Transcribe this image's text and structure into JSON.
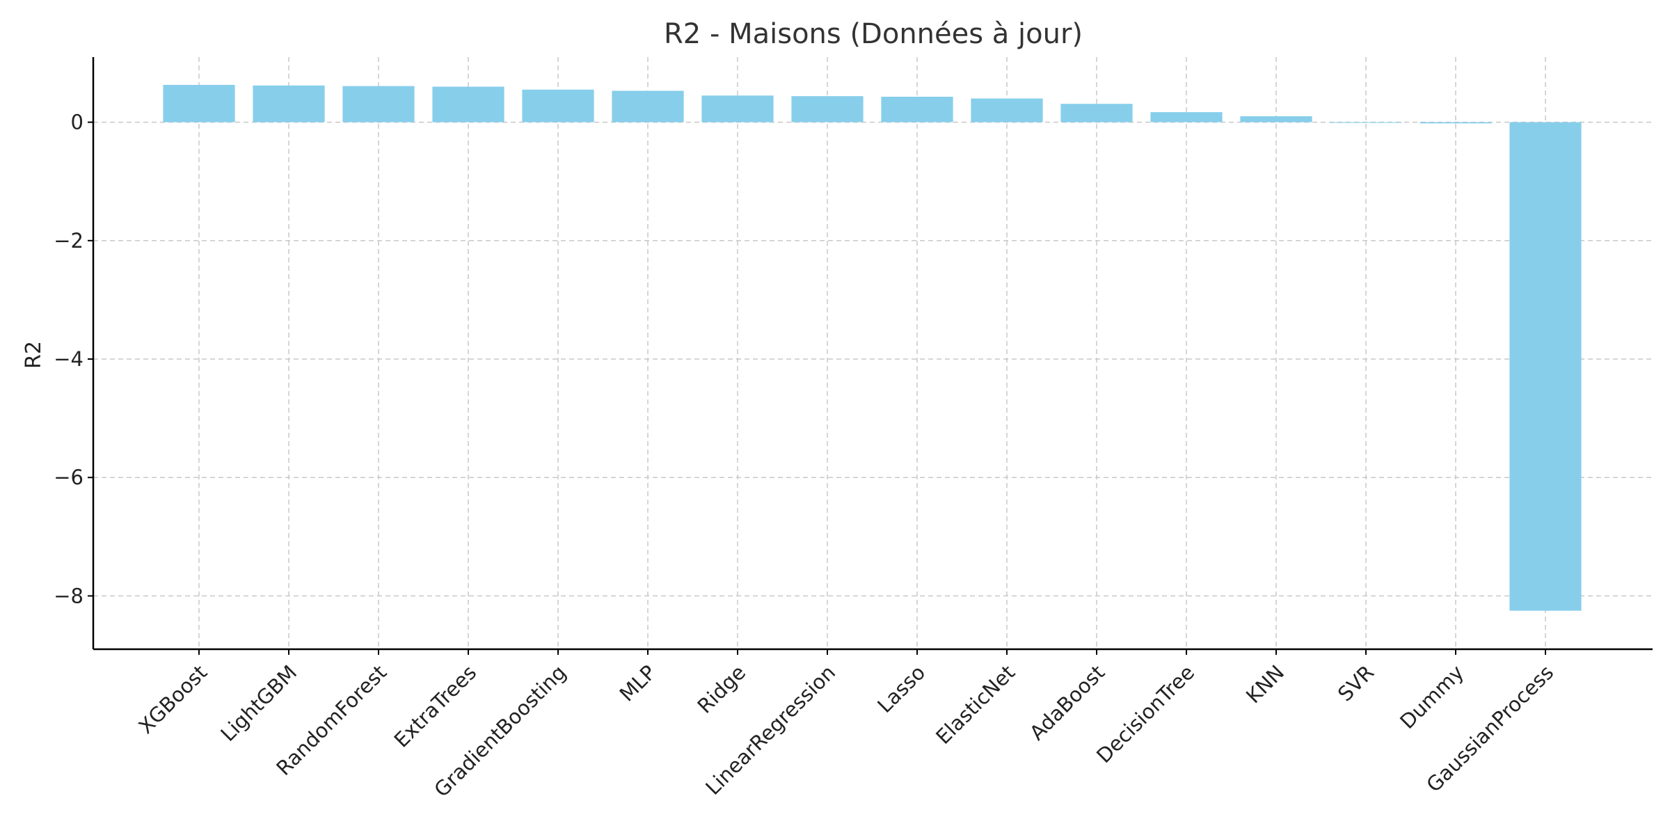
{
  "chart_data": {
    "type": "bar",
    "title": "R2 - Maisons (Données à jour)",
    "xlabel": "",
    "ylabel": "R2",
    "categories": [
      "XGBoost",
      "LightGBM",
      "RandomForest",
      "ExtraTrees",
      "GradientBoosting",
      "MLP",
      "Ridge",
      "LinearRegression",
      "Lasso",
      "ElasticNet",
      "AdaBoost",
      "DecisionTree",
      "KNN",
      "SVR",
      "Dummy",
      "GaussianProcess"
    ],
    "values": [
      0.63,
      0.62,
      0.61,
      0.6,
      0.55,
      0.53,
      0.45,
      0.44,
      0.43,
      0.4,
      0.31,
      0.17,
      0.1,
      -0.005,
      -0.02,
      -8.25
    ],
    "ylim": [
      -8.9,
      1.1
    ],
    "yticks": [
      0,
      -2,
      -4,
      -6,
      -8
    ],
    "ytick_labels": [
      "0",
      "−2",
      "−4",
      "−6",
      "−8"
    ],
    "grid": true,
    "bar_color": "#87ceeb"
  }
}
